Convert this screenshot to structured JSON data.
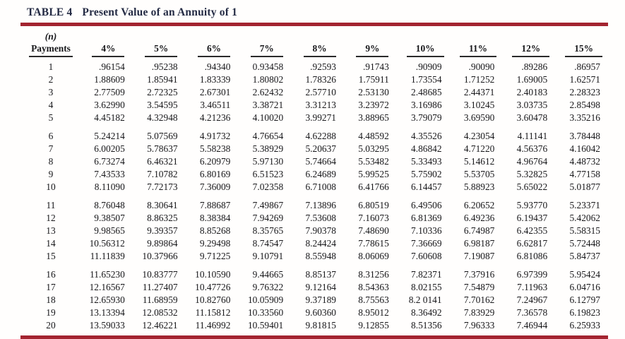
{
  "title": {
    "label": "TABLE 4",
    "text": "Present Value of an Annuity of 1"
  },
  "table": {
    "n_label": "(n)",
    "payments_label": "Payments",
    "columns": [
      "4%",
      "5%",
      "6%",
      "7%",
      "8%",
      "9%",
      "10%",
      "11%",
      "12%",
      "15%"
    ],
    "group_size": 5,
    "rows": [
      {
        "n": "1",
        "values": [
          ".96154",
          ".95238",
          ".94340",
          "0.93458",
          ".92593",
          ".91743",
          ".90909",
          ".90090",
          ".89286",
          ".86957"
        ]
      },
      {
        "n": "2",
        "values": [
          "1.88609",
          "1.85941",
          "1.83339",
          "1.80802",
          "1.78326",
          "1.75911",
          "1.73554",
          "1.71252",
          "1.69005",
          "1.62571"
        ]
      },
      {
        "n": "3",
        "values": [
          "2.77509",
          "2.72325",
          "2.67301",
          "2.62432",
          "2.57710",
          "2.53130",
          "2.48685",
          "2.44371",
          "2.40183",
          "2.28323"
        ]
      },
      {
        "n": "4",
        "values": [
          "3.62990",
          "3.54595",
          "3.46511",
          "3.38721",
          "3.31213",
          "3.23972",
          "3.16986",
          "3.10245",
          "3.03735",
          "2.85498"
        ]
      },
      {
        "n": "5",
        "values": [
          "4.45182",
          "4.32948",
          "4.21236",
          "4.10020",
          "3.99271",
          "3.88965",
          "3.79079",
          "3.69590",
          "3.60478",
          "3.35216"
        ]
      },
      {
        "n": "6",
        "values": [
          "5.24214",
          "5.07569",
          "4.91732",
          "4.76654",
          "4.62288",
          "4.48592",
          "4.35526",
          "4.23054",
          "4.11141",
          "3.78448"
        ]
      },
      {
        "n": "7",
        "values": [
          "6.00205",
          "5.78637",
          "5.58238",
          "5.38929",
          "5.20637",
          "5.03295",
          "4.86842",
          "4.71220",
          "4.56376",
          "4.16042"
        ]
      },
      {
        "n": "8",
        "values": [
          "6.73274",
          "6.46321",
          "6.20979",
          "5.97130",
          "5.74664",
          "5.53482",
          "5.33493",
          "5.14612",
          "4.96764",
          "4.48732"
        ]
      },
      {
        "n": "9",
        "values": [
          "7.43533",
          "7.10782",
          "6.80169",
          "6.51523",
          "6.24689",
          "5.99525",
          "5.75902",
          "5.53705",
          "5.32825",
          "4.77158"
        ]
      },
      {
        "n": "10",
        "values": [
          "8.11090",
          "7.72173",
          "7.36009",
          "7.02358",
          "6.71008",
          "6.41766",
          "6.14457",
          "5.88923",
          "5.65022",
          "5.01877"
        ]
      },
      {
        "n": "11",
        "values": [
          "8.76048",
          "8.30641",
          "7.88687",
          "7.49867",
          "7.13896",
          "6.80519",
          "6.49506",
          "6.20652",
          "5.93770",
          "5.23371"
        ]
      },
      {
        "n": "12",
        "values": [
          "9.38507",
          "8.86325",
          "8.38384",
          "7.94269",
          "7.53608",
          "7.16073",
          "6.81369",
          "6.49236",
          "6.19437",
          "5.42062"
        ]
      },
      {
        "n": "13",
        "values": [
          "9.98565",
          "9.39357",
          "8.85268",
          "8.35765",
          "7.90378",
          "7.48690",
          "7.10336",
          "6.74987",
          "6.42355",
          "5.58315"
        ]
      },
      {
        "n": "14",
        "values": [
          "10.56312",
          "9.89864",
          "9.29498",
          "8.74547",
          "8.24424",
          "7.78615",
          "7.36669",
          "6.98187",
          "6.62817",
          "5.72448"
        ]
      },
      {
        "n": "15",
        "values": [
          "11.11839",
          "10.37966",
          "9.71225",
          "9.10791",
          "8.55948",
          "8.06069",
          "7.60608",
          "7.19087",
          "6.81086",
          "5.84737"
        ]
      },
      {
        "n": "16",
        "values": [
          "11.65230",
          "10.83777",
          "10.10590",
          "9.44665",
          "8.85137",
          "8.31256",
          "7.82371",
          "7.37916",
          "6.97399",
          "5.95424"
        ]
      },
      {
        "n": "17",
        "values": [
          "12.16567",
          "11.27407",
          "10.47726",
          "9.76322",
          "9.12164",
          "8.54363",
          "8.02155",
          "7.54879",
          "7.11963",
          "6.04716"
        ]
      },
      {
        "n": "18",
        "values": [
          "12.65930",
          "11.68959",
          "10.82760",
          "10.05909",
          "9.37189",
          "8.75563",
          "8.2 0141",
          "7.70162",
          "7.24967",
          "6.12797"
        ]
      },
      {
        "n": "19",
        "values": [
          "13.13394",
          "12.08532",
          "11.15812",
          "10.33560",
          "9.60360",
          "8.95012",
          "8.36492",
          "7.83929",
          "7.36578",
          "6.19823"
        ]
      },
      {
        "n": "20",
        "values": [
          "13.59033",
          "12.46221",
          "11.46992",
          "10.59401",
          "9.81815",
          "9.12855",
          "8.51356",
          "7.96333",
          "7.46944",
          "6.25933"
        ]
      }
    ]
  },
  "colors": {
    "rule_red": "#a32430",
    "title_text": "#242b44",
    "body_text": "#1a1a1a"
  }
}
